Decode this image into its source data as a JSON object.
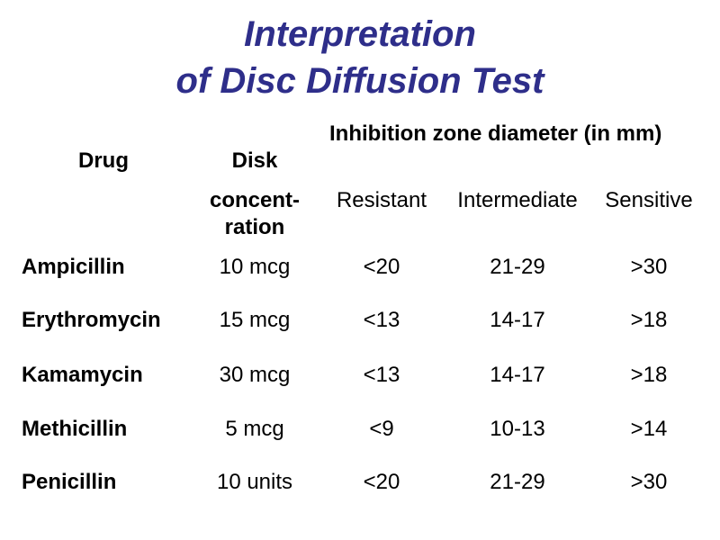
{
  "title": {
    "line1": "Interpretation",
    "line2": "of Disc Diffusion Test"
  },
  "headers": {
    "drug": "Drug",
    "disk": "Disk",
    "concentration_line1": "concent-",
    "concentration_line2": "ration",
    "inhibition": "Inhibition zone diameter (in mm)",
    "resistant": "Resistant",
    "intermediate": "Intermediate",
    "sensitive": "Sensitive"
  },
  "rows": [
    {
      "drug": "Ampicillin",
      "conc": "10 mcg",
      "resistant": "<20",
      "intermediate": "21-29",
      "sensitive": ">30"
    },
    {
      "drug": "Erythromycin",
      "conc": "15 mcg",
      "resistant": "<13",
      "intermediate": "14-17",
      "sensitive": ">18"
    },
    {
      "drug": "Kamamycin",
      "conc": "30 mcg",
      "resistant": "<13",
      "intermediate": "14-17",
      "sensitive": ">18"
    },
    {
      "drug": "Methicillin",
      "conc": "5 mcg",
      "resistant": "<9",
      "intermediate": "10-13",
      "sensitive": ">14"
    },
    {
      "drug": "Penicillin",
      "conc": "10 units",
      "resistant": "<20",
      "intermediate": "21-29",
      "sensitive": ">30"
    }
  ]
}
